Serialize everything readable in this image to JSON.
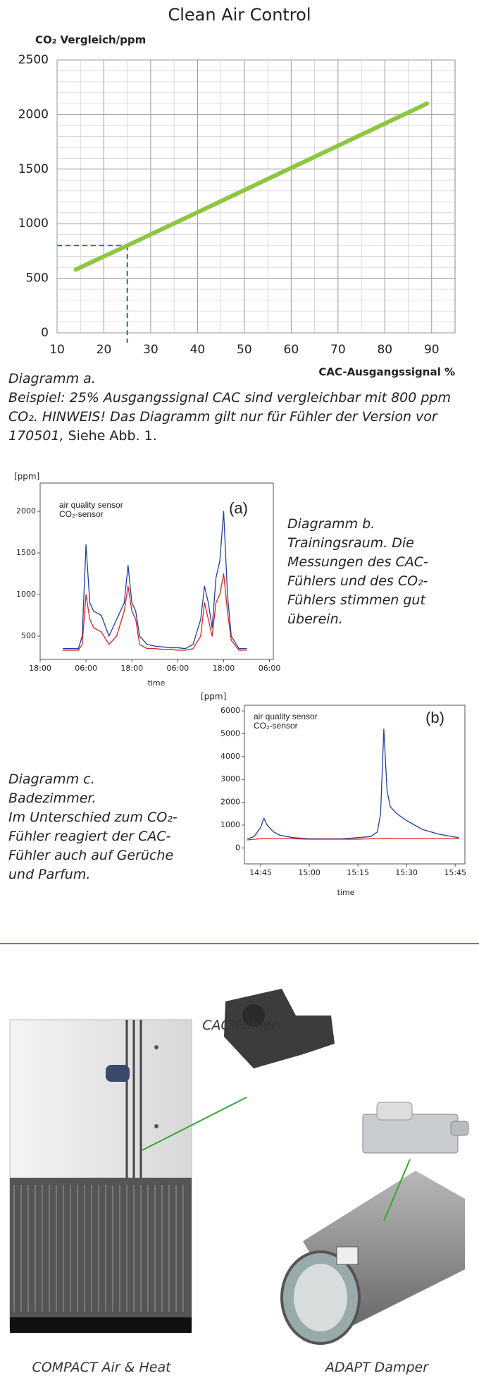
{
  "header": {
    "title": "Clean Air Control"
  },
  "chart_data": [
    {
      "type": "line",
      "y_label": "CO₂ Vergleich/ppm",
      "x_label": "CAC-Ausgangssignal %",
      "x": [
        14,
        25,
        89
      ],
      "series": [
        {
          "color": "#8dc63f",
          "values": [
            580,
            800,
            2100
          ]
        }
      ],
      "xlim": [
        10,
        95
      ],
      "xticks": [
        10,
        20,
        30,
        40,
        50,
        60,
        70,
        80,
        90
      ],
      "ylim": [
        0,
        2500
      ],
      "yticks": [
        0,
        500,
        1000,
        1500,
        2000,
        2500
      ],
      "grid": true,
      "reference": {
        "x": 25,
        "y": 800,
        "color": "#1f6f9f"
      }
    },
    {
      "type": "line",
      "y_label": "[ppm]",
      "x_label": "time",
      "panel_label": "(a)",
      "x": [
        6,
        8,
        10,
        11,
        12,
        13,
        14,
        16,
        18,
        20,
        22,
        23,
        24,
        25,
        26,
        28,
        30,
        32,
        34,
        36,
        38,
        40,
        42,
        43,
        44,
        45,
        46,
        47,
        48,
        49,
        50,
        52,
        54
      ],
      "series": [
        {
          "name": "air quality sensor",
          "color": "#1f3fa0",
          "values": [
            350,
            350,
            350,
            500,
            1600,
            900,
            800,
            750,
            500,
            700,
            900,
            1350,
            900,
            800,
            500,
            400,
            380,
            370,
            360,
            360,
            350,
            400,
            700,
            1100,
            900,
            600,
            1200,
            1400,
            2000,
            1000,
            500,
            350,
            350
          ]
        },
        {
          "name": "CO₂-sensor",
          "color": "#e02020",
          "values": [
            330,
            330,
            330,
            400,
            1000,
            700,
            600,
            550,
            400,
            500,
            800,
            1100,
            800,
            700,
            400,
            350,
            350,
            340,
            340,
            330,
            330,
            350,
            500,
            900,
            700,
            500,
            900,
            1000,
            1250,
            800,
            450,
            330,
            330
          ]
        }
      ],
      "xlim": [
        0,
        61
      ],
      "xticks": [
        {
          "value": 0,
          "label": "18:00"
        },
        {
          "value": 12,
          "label": "06:00"
        },
        {
          "value": 24,
          "label": "18:00"
        },
        {
          "value": 36,
          "label": "06:00"
        },
        {
          "value": 48,
          "label": "18:00"
        },
        {
          "value": 60,
          "label": "06:00"
        }
      ],
      "ylim": [
        220,
        2340
      ],
      "yticks": [
        500,
        1000,
        1500,
        2000
      ],
      "grid": false
    },
    {
      "type": "line",
      "y_label": "[ppm]",
      "x_label": "time",
      "panel_label": "(b)",
      "x": [
        -4,
        -2,
        0,
        1,
        2,
        4,
        6,
        10,
        15,
        20,
        25,
        30,
        34,
        36,
        37,
        38,
        39,
        40,
        42,
        45,
        50,
        55,
        61
      ],
      "series": [
        {
          "name": "air quality sensor",
          "color": "#1f3fa0",
          "values": [
            400,
            500,
            900,
            1300,
            1000,
            700,
            550,
            450,
            400,
            400,
            400,
            450,
            500,
            700,
            1500,
            5200,
            2500,
            1800,
            1500,
            1200,
            800,
            600,
            450
          ]
        },
        {
          "name": "CO₂-sensor",
          "color": "#e02020",
          "values": [
            350,
            380,
            400,
            400,
            400,
            400,
            400,
            400,
            380,
            380,
            380,
            380,
            400,
            400,
            400,
            420,
            420,
            420,
            400,
            400,
            400,
            400,
            400
          ]
        }
      ],
      "xlim": [
        -5,
        63
      ],
      "xticks": [
        {
          "value": 0,
          "label": "14:45"
        },
        {
          "value": 15,
          "label": "15:00"
        },
        {
          "value": 30,
          "label": "15:15"
        },
        {
          "value": 45,
          "label": "15:30"
        },
        {
          "value": 60,
          "label": "15:45"
        }
      ],
      "ylim": [
        -700,
        6250
      ],
      "yticks": [
        0,
        1000,
        2000,
        3000,
        4000,
        5000,
        6000
      ],
      "grid": false
    }
  ],
  "captions": {
    "a": {
      "title": "Diagramm a.",
      "note": "Beispiel: 25% Ausgangssignal CAC sind vergleichbar mit 800 ppm CO₂. HINWEIS! Das Diagramm gilt nur für Fühler der Version vor 170501,",
      "reference": "Siehe Abb. 1."
    },
    "b": {
      "text": "Diagramm b. Trainingsraum. Die Messungen des CAC-Fühlers und des CO₂-Fühlers stimmen gut überein."
    },
    "c": {
      "title": "Diagramm c. Badezimmer.",
      "text": "Im Unterschied zum CO₂-Fühler reagiert der CAC-Fühler auch auf Gerüche und Parfum."
    }
  },
  "products": {
    "sensor": "CAC-Fühler",
    "unit": "COMPACT Air & Heat",
    "damper": "ADAPT Damper"
  }
}
